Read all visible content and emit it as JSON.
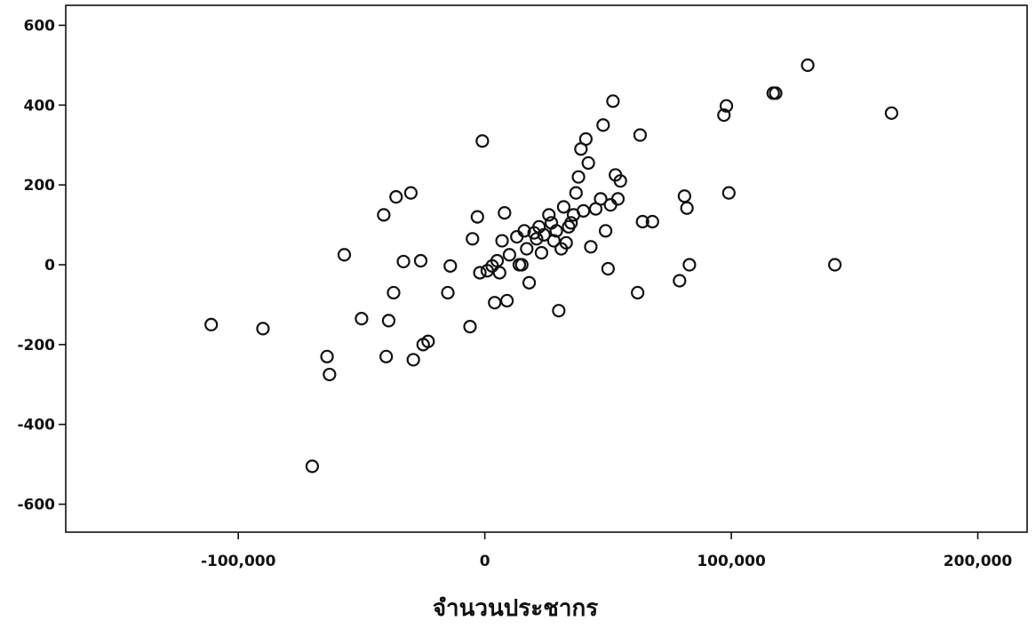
{
  "chart_data": {
    "type": "scatter",
    "title": "",
    "xlabel": "จำนวนประชากร",
    "ylabel": "",
    "xlim": [
      -170000,
      220000
    ],
    "ylim": [
      -670,
      650
    ],
    "grid": false,
    "x_ticks": [
      -100000,
      0,
      100000,
      200000
    ],
    "x_tick_labels": [
      "-100,000",
      "0",
      "100,000",
      "200,000"
    ],
    "y_ticks": [
      600,
      400,
      200,
      0,
      -200,
      -400,
      -600
    ],
    "y_tick_labels": [
      "600",
      "400",
      "200",
      "0",
      "-200",
      "-400",
      "-600"
    ],
    "points": [
      {
        "x": -111000,
        "y": -150
      },
      {
        "x": -90000,
        "y": -160
      },
      {
        "x": -70000,
        "y": -505
      },
      {
        "x": -64000,
        "y": -230
      },
      {
        "x": -63000,
        "y": -275
      },
      {
        "x": -57000,
        "y": 25
      },
      {
        "x": -50000,
        "y": -135
      },
      {
        "x": -41000,
        "y": 125
      },
      {
        "x": -40000,
        "y": -230
      },
      {
        "x": -39000,
        "y": -140
      },
      {
        "x": -37000,
        "y": -70
      },
      {
        "x": -36000,
        "y": 170
      },
      {
        "x": -33000,
        "y": 8
      },
      {
        "x": -30000,
        "y": 180
      },
      {
        "x": -29000,
        "y": -238
      },
      {
        "x": -26000,
        "y": 10
      },
      {
        "x": -25000,
        "y": -200
      },
      {
        "x": -23000,
        "y": -192
      },
      {
        "x": -15000,
        "y": -70
      },
      {
        "x": -14000,
        "y": -3
      },
      {
        "x": -6000,
        "y": -155
      },
      {
        "x": -5000,
        "y": 65
      },
      {
        "x": -3000,
        "y": 120
      },
      {
        "x": -2000,
        "y": -20
      },
      {
        "x": -1000,
        "y": 310
      },
      {
        "x": 1000,
        "y": -15
      },
      {
        "x": 3000,
        "y": -3
      },
      {
        "x": 4000,
        "y": -95
      },
      {
        "x": 5000,
        "y": 10
      },
      {
        "x": 6000,
        "y": -20
      },
      {
        "x": 7000,
        "y": 60
      },
      {
        "x": 8000,
        "y": 130
      },
      {
        "x": 9000,
        "y": -90
      },
      {
        "x": 10000,
        "y": 25
      },
      {
        "x": 13000,
        "y": 70
      },
      {
        "x": 14000,
        "y": 0
      },
      {
        "x": 15000,
        "y": 0
      },
      {
        "x": 16000,
        "y": 85
      },
      {
        "x": 17000,
        "y": 40
      },
      {
        "x": 18000,
        "y": -45
      },
      {
        "x": 20000,
        "y": 80
      },
      {
        "x": 21000,
        "y": 65
      },
      {
        "x": 22000,
        "y": 95
      },
      {
        "x": 23000,
        "y": 30
      },
      {
        "x": 24000,
        "y": 75
      },
      {
        "x": 26000,
        "y": 125
      },
      {
        "x": 27000,
        "y": 105
      },
      {
        "x": 28000,
        "y": 60
      },
      {
        "x": 29000,
        "y": 85
      },
      {
        "x": 30000,
        "y": -115
      },
      {
        "x": 31000,
        "y": 40
      },
      {
        "x": 32000,
        "y": 145
      },
      {
        "x": 33000,
        "y": 55
      },
      {
        "x": 34000,
        "y": 95
      },
      {
        "x": 35000,
        "y": 105
      },
      {
        "x": 36000,
        "y": 125
      },
      {
        "x": 37000,
        "y": 180
      },
      {
        "x": 38000,
        "y": 220
      },
      {
        "x": 39000,
        "y": 290
      },
      {
        "x": 40000,
        "y": 135
      },
      {
        "x": 41000,
        "y": 315
      },
      {
        "x": 42000,
        "y": 255
      },
      {
        "x": 43000,
        "y": 45
      },
      {
        "x": 45000,
        "y": 140
      },
      {
        "x": 47000,
        "y": 165
      },
      {
        "x": 48000,
        "y": 350
      },
      {
        "x": 49000,
        "y": 85
      },
      {
        "x": 50000,
        "y": -10
      },
      {
        "x": 51000,
        "y": 150
      },
      {
        "x": 52000,
        "y": 410
      },
      {
        "x": 53000,
        "y": 225
      },
      {
        "x": 54000,
        "y": 165
      },
      {
        "x": 55000,
        "y": 210
      },
      {
        "x": 62000,
        "y": -70
      },
      {
        "x": 63000,
        "y": 325
      },
      {
        "x": 64000,
        "y": 108
      },
      {
        "x": 68000,
        "y": 108
      },
      {
        "x": 79000,
        "y": -40
      },
      {
        "x": 81000,
        "y": 172
      },
      {
        "x": 82000,
        "y": 142
      },
      {
        "x": 83000,
        "y": 0
      },
      {
        "x": 97000,
        "y": 375
      },
      {
        "x": 98000,
        "y": 398
      },
      {
        "x": 99000,
        "y": 180
      },
      {
        "x": 117000,
        "y": 430
      },
      {
        "x": 118000,
        "y": 430
      },
      {
        "x": 131000,
        "y": 500
      },
      {
        "x": 142000,
        "y": 0
      },
      {
        "x": 165000,
        "y": 380
      }
    ]
  }
}
